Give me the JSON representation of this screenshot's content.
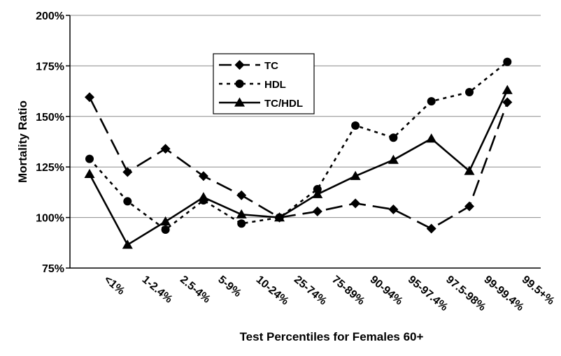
{
  "chart_data": {
    "type": "line",
    "title": "",
    "xlabel": "Test Percentiles for Females 60+",
    "ylabel": "Mortality Ratio",
    "categories": [
      "<1%",
      "1-2.4%",
      "2.5-4%",
      "5-9%",
      "10-24%",
      "25-74%",
      "75-89%",
      "90-94%",
      "95-97.4%",
      "97.5-98%",
      "99-99.4%",
      "99.5+%"
    ],
    "ylim": [
      75,
      200
    ],
    "yticks": [
      75,
      100,
      125,
      150,
      175,
      200
    ],
    "ytick_labels": [
      "75%",
      "100%",
      "125%",
      "150%",
      "175%",
      "200%"
    ],
    "grid": "horizontal",
    "legend_position": "upper-center",
    "series": [
      {
        "name": "TC",
        "marker": "diamond",
        "line": "long-dash",
        "values": [
          159.5,
          122.5,
          134,
          120.5,
          111,
          100,
          103,
          107,
          104,
          94.5,
          105.5,
          157
        ]
      },
      {
        "name": "HDL",
        "marker": "circle",
        "line": "dotted",
        "values": [
          129,
          108,
          94,
          108.5,
          97,
          100,
          114,
          145.5,
          139.5,
          157.5,
          162,
          177
        ]
      },
      {
        "name": "TC/HDL",
        "marker": "triangle",
        "line": "solid",
        "values": [
          121.5,
          86.5,
          98,
          110,
          101.5,
          100,
          111.5,
          120.5,
          128.5,
          139,
          123,
          163
        ]
      }
    ]
  }
}
